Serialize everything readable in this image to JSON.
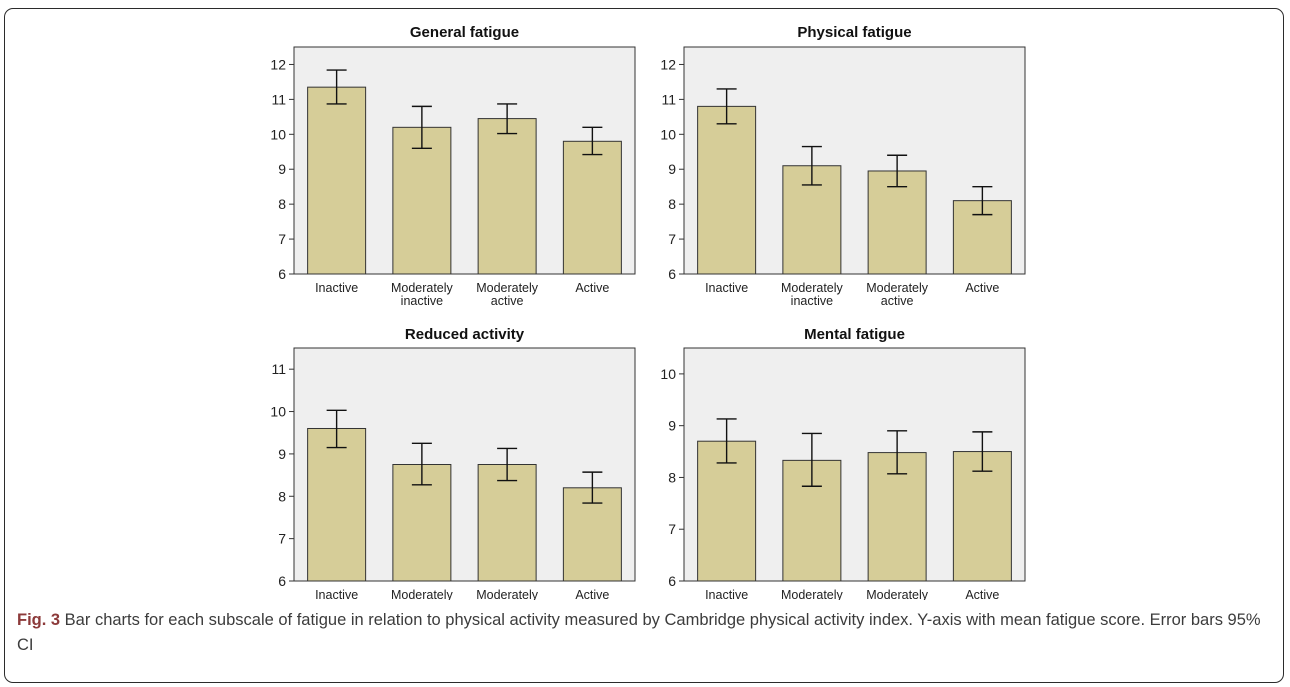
{
  "chart_data": [
    {
      "type": "bar",
      "title": "General fatigue",
      "categories": [
        "Inactive",
        "Moderately inactive",
        "Moderately active",
        "Active"
      ],
      "values": [
        11.35,
        10.2,
        10.45,
        9.8
      ],
      "error_low": [
        10.87,
        9.6,
        10.02,
        9.42
      ],
      "error_high": [
        11.84,
        10.8,
        10.87,
        10.2
      ],
      "ylim": [
        6,
        12.5
      ],
      "yticks": [
        6,
        7,
        8,
        9,
        10,
        11,
        12
      ],
      "bar_color": "#d6cd98",
      "plot_bg": "#efefef"
    },
    {
      "type": "bar",
      "title": "Physical fatigue",
      "categories": [
        "Inactive",
        "Moderately inactive",
        "Moderately active",
        "Active"
      ],
      "values": [
        10.8,
        9.1,
        8.95,
        8.1
      ],
      "error_low": [
        10.3,
        8.55,
        8.5,
        7.7
      ],
      "error_high": [
        11.3,
        9.65,
        9.4,
        8.5
      ],
      "ylim": [
        6,
        12.5
      ],
      "yticks": [
        6,
        7,
        8,
        9,
        10,
        11,
        12
      ],
      "bar_color": "#d6cd98",
      "plot_bg": "#efefef"
    },
    {
      "type": "bar",
      "title": "Reduced activity",
      "categories": [
        "Inactive",
        "Moderately inactive",
        "Moderately active",
        "Active"
      ],
      "values": [
        9.6,
        8.75,
        8.75,
        8.2
      ],
      "error_low": [
        9.15,
        8.27,
        8.37,
        7.84
      ],
      "error_high": [
        10.03,
        9.25,
        9.13,
        8.57
      ],
      "ylim": [
        6,
        11.5
      ],
      "yticks": [
        6,
        7,
        8,
        9,
        10,
        11
      ],
      "bar_color": "#d6cd98",
      "plot_bg": "#efefef"
    },
    {
      "type": "bar",
      "title": "Mental fatigue",
      "categories": [
        "Inactive",
        "Moderately inactive",
        "Moderately active",
        "Active"
      ],
      "values": [
        8.7,
        8.33,
        8.48,
        8.5
      ],
      "error_low": [
        8.28,
        7.83,
        8.07,
        8.12
      ],
      "error_high": [
        9.13,
        8.85,
        8.9,
        8.88
      ],
      "ylim": [
        6,
        10.5
      ],
      "yticks": [
        6,
        7,
        8,
        9,
        10
      ],
      "bar_color": "#d6cd98",
      "plot_bg": "#efefef"
    }
  ],
  "caption": {
    "label": "Fig. 3",
    "text": " Bar charts for each subscale of fatigue in relation to physical activity measured by Cambridge physical activity index. Y-axis with mean fatigue score. Error bars 95% CI"
  }
}
